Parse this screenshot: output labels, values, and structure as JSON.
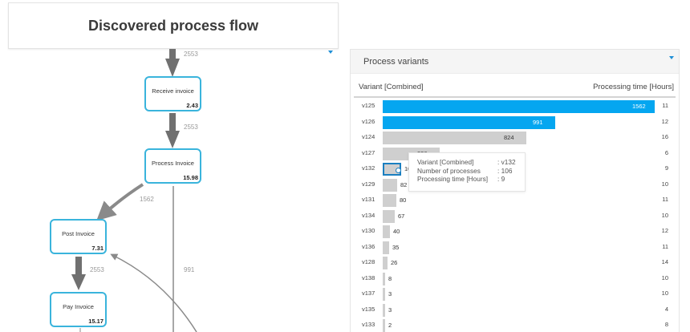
{
  "title": "Discovered process flow",
  "flow": {
    "nodes": [
      {
        "id": "receive",
        "label": "Receive invoice",
        "value": "2.43"
      },
      {
        "id": "process",
        "label": "Process Invoice",
        "value": "15.98"
      },
      {
        "id": "post",
        "label": "Post Invoice",
        "value": "7.31"
      },
      {
        "id": "pay",
        "label": "Pay Invoice",
        "value": "15.17"
      }
    ],
    "edges": [
      {
        "from": "start",
        "to": "receive",
        "label": "2553"
      },
      {
        "from": "receive",
        "to": "process",
        "label": "2553"
      },
      {
        "from": "process",
        "to": "post",
        "label": "1562"
      },
      {
        "from": "post",
        "to": "pay",
        "label": "2553"
      },
      {
        "from": "process",
        "to": "down",
        "label": "991"
      }
    ]
  },
  "panel": {
    "title": "Process variants",
    "col_left": "Variant [Combined]",
    "col_right": "Processing time [Hours]",
    "accent_color": "#05a6f0"
  },
  "tooltip": {
    "rows": [
      {
        "k": "Variant [Combined]",
        "v": ": v132"
      },
      {
        "k": "Number of processes",
        "v": ": 106"
      },
      {
        "k": "Processing time [Hours]",
        "v": ": 9"
      }
    ]
  },
  "chart_data": {
    "type": "bar",
    "orientation": "horizontal",
    "title": "Process variants",
    "xlabel": "Variant [Combined]",
    "ylabel": "Processing time [Hours]",
    "categories": [
      "v125",
      "v126",
      "v124",
      "v127",
      "v132",
      "v129",
      "v131",
      "v134",
      "v130",
      "v136",
      "v128",
      "v138",
      "v137",
      "v135",
      "v133"
    ],
    "series": [
      {
        "name": "Number of processes",
        "values": [
          1562,
          991,
          824,
          326,
          106,
          82,
          80,
          67,
          40,
          35,
          26,
          8,
          3,
          3,
          2
        ]
      },
      {
        "name": "Processing time [Hours]",
        "values": [
          11,
          12,
          16,
          6,
          9,
          10,
          11,
          10,
          12,
          11,
          14,
          10,
          10,
          4,
          8
        ]
      }
    ],
    "highlighted": [
      "v125",
      "v126"
    ],
    "hovered": "v132"
  }
}
